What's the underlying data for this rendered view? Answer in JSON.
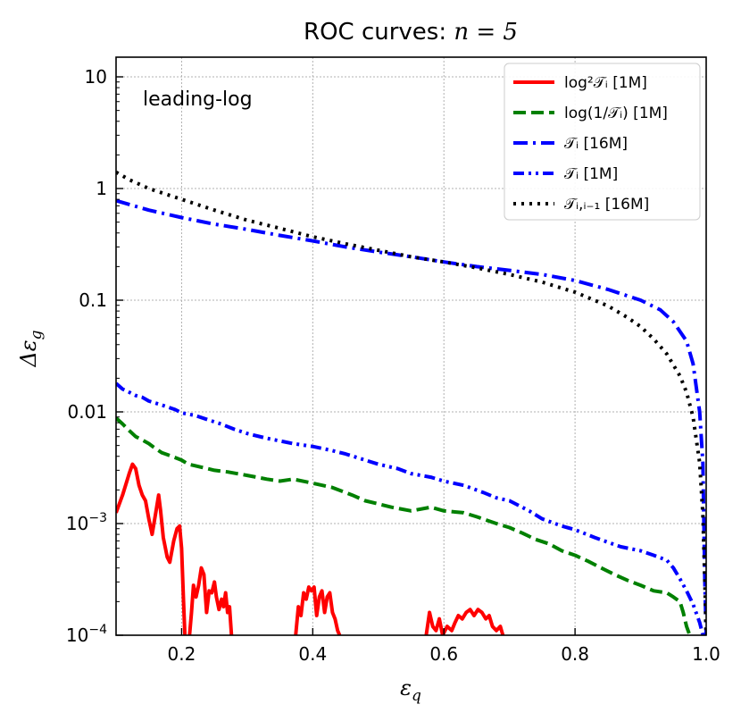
{
  "chart_data": {
    "type": "line",
    "title": "ROC curves: n = 5",
    "title_plain": "ROC curves: ",
    "title_math": "n = 5",
    "xlabel": "ε_q",
    "ylabel": "Δε_g",
    "xlim": [
      0.1,
      1.0
    ],
    "ylim": [
      0.0001,
      15
    ],
    "yscale": "log",
    "grid": true,
    "legend_position": "top-right",
    "annotation": "leading-log",
    "x_ticks": [
      {
        "value": 0.2,
        "label": "0.2"
      },
      {
        "value": 0.4,
        "label": "0.4"
      },
      {
        "value": 0.6,
        "label": "0.6"
      },
      {
        "value": 0.8,
        "label": "0.8"
      },
      {
        "value": 1.0,
        "label": "1.0"
      }
    ],
    "y_ticks": [
      {
        "value": 10,
        "label": "10"
      },
      {
        "value": 1,
        "label": "1"
      },
      {
        "value": 0.1,
        "label": "0.1"
      },
      {
        "value": 0.01,
        "label": "0.01"
      },
      {
        "value": 0.001,
        "label": "10",
        "sup": "−3"
      },
      {
        "value": 0.0001,
        "label": "10",
        "sup": "−4"
      }
    ],
    "series": [
      {
        "name": "log²𝒯ᵢ [1M]",
        "color": "#ff0000",
        "style": "solid",
        "segments": [
          [
            [
              0.1,
              0.00125
            ],
            [
              0.11,
              0.0018
            ],
            [
              0.12,
              0.0028
            ],
            [
              0.125,
              0.0034
            ],
            [
              0.13,
              0.0031
            ],
            [
              0.135,
              0.0022
            ],
            [
              0.14,
              0.0018
            ],
            [
              0.145,
              0.0016
            ],
            [
              0.15,
              0.0011
            ],
            [
              0.155,
              0.0008
            ],
            [
              0.16,
              0.0012
            ],
            [
              0.165,
              0.0018
            ],
            [
              0.168,
              0.0013
            ],
            [
              0.172,
              0.00075
            ],
            [
              0.178,
              0.0005
            ],
            [
              0.182,
              0.00045
            ],
            [
              0.188,
              0.0007
            ],
            [
              0.193,
              0.0009
            ],
            [
              0.197,
              0.00095
            ],
            [
              0.2,
              0.0006
            ],
            [
              0.203,
              0.0002
            ],
            [
              0.205,
              0.0001
            ]
          ],
          [
            [
              0.212,
              0.0001
            ],
            [
              0.215,
              0.00016
            ],
            [
              0.218,
              0.00028
            ],
            [
              0.222,
              0.00022
            ],
            [
              0.226,
              0.00028
            ],
            [
              0.23,
              0.0004
            ],
            [
              0.234,
              0.00035
            ],
            [
              0.238,
              0.00016
            ],
            [
              0.242,
              0.00025
            ],
            [
              0.246,
              0.00024
            ],
            [
              0.25,
              0.0003
            ],
            [
              0.253,
              0.00022
            ],
            [
              0.257,
              0.00017
            ],
            [
              0.261,
              0.00021
            ],
            [
              0.264,
              0.00018
            ],
            [
              0.267,
              0.00024
            ],
            [
              0.27,
              0.00016
            ],
            [
              0.273,
              0.00018
            ],
            [
              0.276,
              0.0001
            ]
          ],
          [
            [
              0.374,
              0.0001
            ],
            [
              0.378,
              0.00018
            ],
            [
              0.382,
              0.00015
            ],
            [
              0.386,
              0.00024
            ],
            [
              0.39,
              0.00021
            ],
            [
              0.394,
              0.00027
            ],
            [
              0.398,
              0.00025
            ],
            [
              0.402,
              0.00027
            ],
            [
              0.406,
              0.00015
            ],
            [
              0.41,
              0.00022
            ],
            [
              0.414,
              0.00025
            ],
            [
              0.418,
              0.00016
            ],
            [
              0.422,
              0.00022
            ],
            [
              0.426,
              0.00024
            ],
            [
              0.43,
              0.00016
            ],
            [
              0.434,
              0.00014
            ],
            [
              0.438,
              0.00011
            ],
            [
              0.441,
              0.0001
            ]
          ],
          [
            [
              0.573,
              0.0001
            ],
            [
              0.578,
              0.00016
            ],
            [
              0.583,
              0.00012
            ],
            [
              0.588,
              0.00011
            ],
            [
              0.593,
              0.00014
            ],
            [
              0.598,
              0.0001
            ],
            [
              0.605,
              0.00012
            ],
            [
              0.612,
              0.00011
            ],
            [
              0.617,
              0.00013
            ],
            [
              0.622,
              0.00015
            ],
            [
              0.628,
              0.00014
            ],
            [
              0.634,
              0.00016
            ],
            [
              0.64,
              0.00017
            ],
            [
              0.646,
              0.00015
            ],
            [
              0.652,
              0.00017
            ],
            [
              0.658,
              0.00016
            ],
            [
              0.664,
              0.00014
            ],
            [
              0.669,
              0.00015
            ],
            [
              0.674,
              0.00012
            ],
            [
              0.68,
              0.00011
            ],
            [
              0.686,
              0.00012
            ],
            [
              0.69,
              0.0001
            ]
          ]
        ]
      },
      {
        "name": "log(1/𝒯ᵢ) [1M]",
        "color": "#008000",
        "style": "dashed",
        "points": [
          [
            0.1,
            0.0088
          ],
          [
            0.11,
            0.0078
          ],
          [
            0.12,
            0.0068
          ],
          [
            0.13,
            0.006
          ],
          [
            0.14,
            0.0056
          ],
          [
            0.15,
            0.0052
          ],
          [
            0.16,
            0.0047
          ],
          [
            0.17,
            0.0043
          ],
          [
            0.18,
            0.0041
          ],
          [
            0.19,
            0.0039
          ],
          [
            0.2,
            0.0037
          ],
          [
            0.21,
            0.0034
          ],
          [
            0.22,
            0.0033
          ],
          [
            0.23,
            0.0032
          ],
          [
            0.25,
            0.003
          ],
          [
            0.27,
            0.0029
          ],
          [
            0.3,
            0.0027
          ],
          [
            0.33,
            0.0025
          ],
          [
            0.35,
            0.0024
          ],
          [
            0.37,
            0.0025
          ],
          [
            0.4,
            0.0023
          ],
          [
            0.43,
            0.0021
          ],
          [
            0.46,
            0.0018
          ],
          [
            0.48,
            0.0016
          ],
          [
            0.5,
            0.0015
          ],
          [
            0.52,
            0.0014
          ],
          [
            0.55,
            0.0013
          ],
          [
            0.58,
            0.0014
          ],
          [
            0.6,
            0.0013
          ],
          [
            0.63,
            0.00125
          ],
          [
            0.65,
            0.00115
          ],
          [
            0.68,
            0.001
          ],
          [
            0.7,
            0.00092
          ],
          [
            0.72,
            0.00082
          ],
          [
            0.74,
            0.00072
          ],
          [
            0.76,
            0.00066
          ],
          [
            0.78,
            0.00057
          ],
          [
            0.8,
            0.00052
          ],
          [
            0.82,
            0.00046
          ],
          [
            0.84,
            0.0004
          ],
          [
            0.86,
            0.00035
          ],
          [
            0.88,
            0.00031
          ],
          [
            0.9,
            0.00028
          ],
          [
            0.92,
            0.00025
          ],
          [
            0.94,
            0.00024
          ],
          [
            0.95,
            0.00022
          ],
          [
            0.96,
            0.0002
          ],
          [
            0.965,
            0.00016
          ],
          [
            0.97,
            0.00012
          ],
          [
            0.975,
            0.0001
          ]
        ]
      },
      {
        "name": "𝒯ᵢ [16M]",
        "color": "#0000ff",
        "style": "dashdot",
        "points": [
          [
            0.1,
            0.78
          ],
          [
            0.12,
            0.72
          ],
          [
            0.15,
            0.64
          ],
          [
            0.2,
            0.55
          ],
          [
            0.25,
            0.48
          ],
          [
            0.3,
            0.43
          ],
          [
            0.35,
            0.38
          ],
          [
            0.4,
            0.34
          ],
          [
            0.45,
            0.3
          ],
          [
            0.5,
            0.27
          ],
          [
            0.55,
            0.245
          ],
          [
            0.6,
            0.22
          ],
          [
            0.65,
            0.2
          ],
          [
            0.7,
            0.185
          ],
          [
            0.75,
            0.17
          ],
          [
            0.8,
            0.15
          ],
          [
            0.85,
            0.125
          ],
          [
            0.9,
            0.1
          ],
          [
            0.93,
            0.082
          ],
          [
            0.95,
            0.064
          ],
          [
            0.97,
            0.043
          ],
          [
            0.98,
            0.027
          ],
          [
            0.99,
            0.01
          ],
          [
            0.995,
            0.0035
          ],
          [
            0.998,
            0.0003
          ],
          [
            1.0,
            0.0001
          ]
        ]
      },
      {
        "name": "𝒯ᵢ [1M]",
        "color": "#0000ff",
        "style": "dashdotdot",
        "points": [
          [
            0.1,
            0.018
          ],
          [
            0.11,
            0.016
          ],
          [
            0.12,
            0.015
          ],
          [
            0.13,
            0.014
          ],
          [
            0.14,
            0.0135
          ],
          [
            0.15,
            0.0125
          ],
          [
            0.17,
            0.0115
          ],
          [
            0.19,
            0.0105
          ],
          [
            0.2,
            0.0098
          ],
          [
            0.22,
            0.0093
          ],
          [
            0.24,
            0.0085
          ],
          [
            0.26,
            0.0078
          ],
          [
            0.28,
            0.007
          ],
          [
            0.3,
            0.0064
          ],
          [
            0.33,
            0.0058
          ],
          [
            0.35,
            0.0055
          ],
          [
            0.37,
            0.0052
          ],
          [
            0.4,
            0.0049
          ],
          [
            0.43,
            0.0045
          ],
          [
            0.45,
            0.0042
          ],
          [
            0.48,
            0.0037
          ],
          [
            0.5,
            0.0034
          ],
          [
            0.53,
            0.0031
          ],
          [
            0.55,
            0.0028
          ],
          [
            0.58,
            0.0026
          ],
          [
            0.6,
            0.0024
          ],
          [
            0.63,
            0.0022
          ],
          [
            0.66,
            0.0019
          ],
          [
            0.68,
            0.0017
          ],
          [
            0.7,
            0.0016
          ],
          [
            0.73,
            0.0013
          ],
          [
            0.75,
            0.0011
          ],
          [
            0.78,
            0.00095
          ],
          [
            0.8,
            0.00088
          ],
          [
            0.83,
            0.00075
          ],
          [
            0.85,
            0.00068
          ],
          [
            0.87,
            0.00062
          ],
          [
            0.9,
            0.00057
          ],
          [
            0.92,
            0.00052
          ],
          [
            0.94,
            0.00047
          ],
          [
            0.95,
            0.0004
          ],
          [
            0.96,
            0.00032
          ],
          [
            0.97,
            0.00025
          ],
          [
            0.98,
            0.00019
          ],
          [
            0.99,
            0.00013
          ],
          [
            0.995,
            0.0001
          ]
        ]
      },
      {
        "name": "𝒯ᵢ,ᵢ₋₁ [16M]",
        "color": "#000000",
        "style": "dotted",
        "points": [
          [
            0.1,
            1.4
          ],
          [
            0.12,
            1.2
          ],
          [
            0.15,
            1.0
          ],
          [
            0.2,
            0.8
          ],
          [
            0.25,
            0.64
          ],
          [
            0.3,
            0.52
          ],
          [
            0.35,
            0.44
          ],
          [
            0.4,
            0.37
          ],
          [
            0.45,
            0.32
          ],
          [
            0.5,
            0.28
          ],
          [
            0.55,
            0.245
          ],
          [
            0.6,
            0.22
          ],
          [
            0.65,
            0.195
          ],
          [
            0.7,
            0.17
          ],
          [
            0.75,
            0.145
          ],
          [
            0.8,
            0.118
          ],
          [
            0.85,
            0.089
          ],
          [
            0.88,
            0.07
          ],
          [
            0.9,
            0.058
          ],
          [
            0.92,
            0.045
          ],
          [
            0.94,
            0.033
          ],
          [
            0.96,
            0.021
          ],
          [
            0.97,
            0.015
          ],
          [
            0.98,
            0.009
          ],
          [
            0.99,
            0.0035
          ],
          [
            0.995,
            0.0012
          ],
          [
            0.998,
            0.0003
          ],
          [
            1.0,
            0.0001
          ]
        ]
      }
    ]
  }
}
